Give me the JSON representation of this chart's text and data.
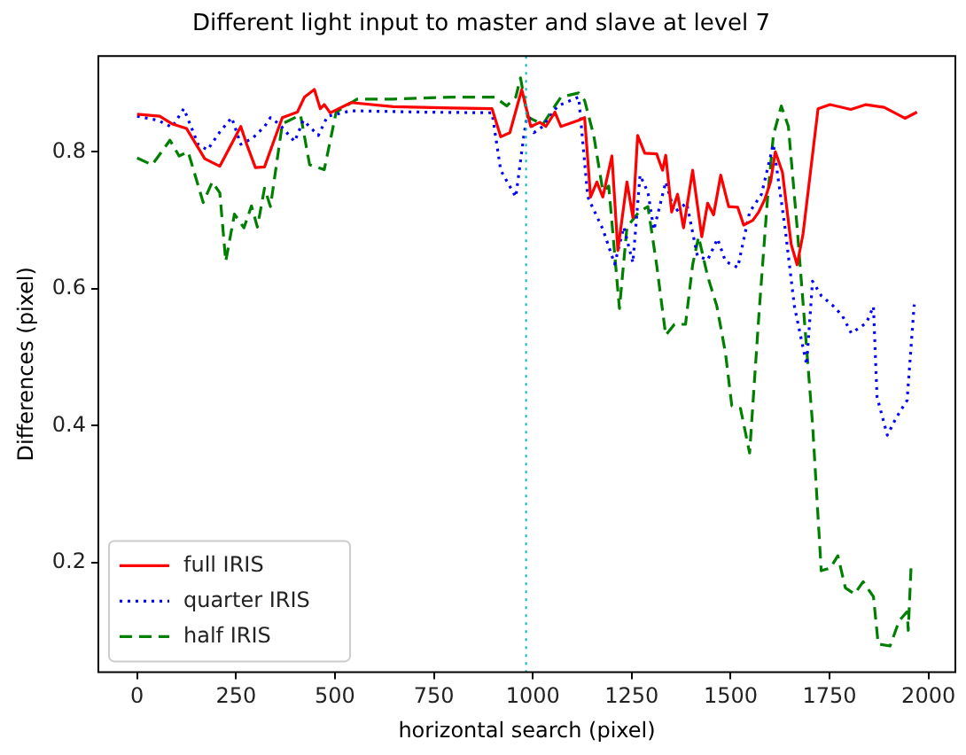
{
  "chart_data": {
    "type": "line",
    "title": "Different light input to master and slave at level 7",
    "xlabel": "horizontal search (pixel)",
    "ylabel": "Differences (pixel)",
    "xlim": [
      -98,
      2068
    ],
    "ylim": [
      0.04,
      0.94
    ],
    "xticks": [
      0,
      250,
      500,
      750,
      1000,
      1250,
      1500,
      1750,
      2000
    ],
    "yticks": [
      0.2,
      0.4,
      0.6,
      0.8
    ],
    "grid": false,
    "legend": "bottom left",
    "series": [
      {
        "name": "full IRIS",
        "color": "#ff0000",
        "line_style": "solid",
        "x": [
          0,
          57,
          88,
          125,
          171,
          209,
          262,
          277,
          299,
          322,
          345,
          367,
          405,
          423,
          448,
          463,
          473,
          488,
          541,
          647,
          798,
          897,
          919,
          942,
          972,
          995,
          1018,
          1033,
          1056,
          1071,
          1116,
          1131,
          1146,
          1162,
          1177,
          1200,
          1215,
          1238,
          1253,
          1265,
          1283,
          1313,
          1328,
          1336,
          1351,
          1366,
          1381,
          1404,
          1427,
          1442,
          1457,
          1475,
          1495,
          1518,
          1533,
          1556,
          1571,
          1586,
          1601,
          1613,
          1631,
          1653,
          1668,
          1683,
          1721,
          1751,
          1804,
          1842,
          1888,
          1941,
          1971
        ],
        "values": [
          0.855,
          0.852,
          0.841,
          0.834,
          0.79,
          0.779,
          0.837,
          0.811,
          0.777,
          0.778,
          0.815,
          0.85,
          0.858,
          0.88,
          0.891,
          0.863,
          0.869,
          0.857,
          0.872,
          0.866,
          0.864,
          0.863,
          0.822,
          0.828,
          0.891,
          0.837,
          0.843,
          0.837,
          0.858,
          0.837,
          0.846,
          0.85,
          0.734,
          0.756,
          0.734,
          0.794,
          0.656,
          0.756,
          0.704,
          0.824,
          0.798,
          0.797,
          0.773,
          0.795,
          0.712,
          0.738,
          0.689,
          0.773,
          0.676,
          0.725,
          0.708,
          0.766,
          0.72,
          0.719,
          0.693,
          0.7,
          0.712,
          0.73,
          0.756,
          0.8,
          0.77,
          0.665,
          0.635,
          0.68,
          0.863,
          0.869,
          0.862,
          0.869,
          0.865,
          0.849,
          0.858
        ]
      },
      {
        "name": "quarter IRIS",
        "color": "#0000ff",
        "line_style": "dotted",
        "x": [
          0,
          53,
          88,
          118,
          155,
          178,
          209,
          239,
          262,
          292,
          322,
          337,
          360,
          398,
          420,
          458,
          481,
          541,
          723,
          897,
          919,
          957,
          977,
          987,
          1003,
          1025,
          1063,
          1116,
          1139,
          1177,
          1207,
          1230,
          1253,
          1271,
          1291,
          1306,
          1336,
          1358,
          1389,
          1416,
          1442,
          1467,
          1487,
          1518,
          1548,
          1578,
          1608,
          1638,
          1661,
          1692,
          1707,
          1729,
          1759,
          1782,
          1805,
          1843,
          1861,
          1870,
          1896,
          1919,
          1946,
          1964
        ],
        "values": [
          0.852,
          0.846,
          0.836,
          0.863,
          0.81,
          0.803,
          0.829,
          0.85,
          0.811,
          0.82,
          0.837,
          0.85,
          0.84,
          0.815,
          0.846,
          0.824,
          0.852,
          0.86,
          0.858,
          0.857,
          0.773,
          0.734,
          0.822,
          0.858,
          0.828,
          0.837,
          0.867,
          0.88,
          0.734,
          0.687,
          0.636,
          0.69,
          0.638,
          0.766,
          0.741,
          0.686,
          0.756,
          0.712,
          0.725,
          0.648,
          0.642,
          0.673,
          0.64,
          0.631,
          0.712,
          0.738,
          0.811,
          0.687,
          0.575,
          0.489,
          0.611,
          0.59,
          0.575,
          0.561,
          0.535,
          0.55,
          0.574,
          0.442,
          0.386,
          0.412,
          0.437,
          0.577
        ]
      },
      {
        "name": "half IRIS",
        "color": "#008000",
        "line_style": "dashed",
        "x": [
          0,
          38,
          83,
          106,
          129,
          167,
          190,
          209,
          224,
          246,
          270,
          289,
          304,
          322,
          337,
          367,
          413,
          436,
          473,
          503,
          556,
          647,
          798,
          904,
          934,
          957,
          969,
          987,
          1025,
          1071,
          1116,
          1131,
          1154,
          1177,
          1192,
          1219,
          1238,
          1268,
          1291,
          1313,
          1336,
          1358,
          1386,
          1404,
          1419,
          1442,
          1465,
          1487,
          1503,
          1525,
          1548,
          1571,
          1593,
          1608,
          1628,
          1646,
          1668,
          1707,
          1729,
          1752,
          1771,
          1790,
          1813,
          1835,
          1861,
          1873,
          1903,
          1926,
          1946,
          1949,
          1956,
          1964
        ],
        "values": [
          0.791,
          0.781,
          0.817,
          0.794,
          0.8,
          0.726,
          0.756,
          0.74,
          0.64,
          0.709,
          0.689,
          0.721,
          0.69,
          0.747,
          0.72,
          0.841,
          0.854,
          0.781,
          0.774,
          0.858,
          0.877,
          0.877,
          0.88,
          0.88,
          0.867,
          0.88,
          0.908,
          0.851,
          0.84,
          0.88,
          0.886,
          0.875,
          0.824,
          0.743,
          0.75,
          0.571,
          0.69,
          0.712,
          0.72,
          0.635,
          0.532,
          0.548,
          0.548,
          0.635,
          0.676,
          0.618,
          0.575,
          0.506,
          0.429,
          0.425,
          0.36,
          0.558,
          0.73,
          0.824,
          0.867,
          0.837,
          0.69,
          0.403,
          0.188,
          0.192,
          0.21,
          0.163,
          0.154,
          0.172,
          0.15,
          0.081,
          0.078,
          0.115,
          0.128,
          0.101,
          0.193,
          0.19
        ]
      }
    ],
    "ref_lines": [
      {
        "axis": "x",
        "value": 983,
        "color": "#00bfbf",
        "line_style": "dotted"
      }
    ]
  }
}
